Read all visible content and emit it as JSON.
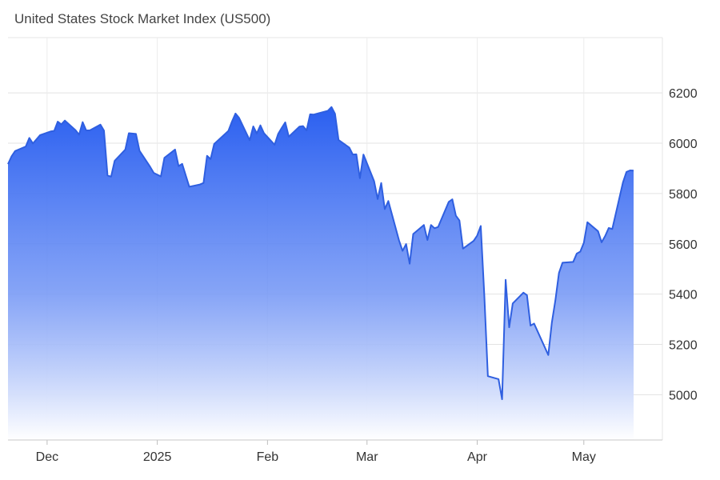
{
  "chart_data": {
    "type": "area",
    "title": "United States Stock Market Index (US500)",
    "xlabel": "",
    "ylabel": "",
    "ylim": [
      4820,
      6420
    ],
    "y_ticks": [
      5000,
      5200,
      5400,
      5600,
      5800,
      6000,
      6200
    ],
    "x_ticks": [
      {
        "label": "Dec",
        "date": "2024-12-01"
      },
      {
        "label": "2025",
        "date": "2025-01-01"
      },
      {
        "label": "Feb",
        "date": "2025-02-01"
      },
      {
        "label": "Mar",
        "date": "2025-03-01"
      },
      {
        "label": "Apr",
        "date": "2025-04-01"
      },
      {
        "label": "May",
        "date": "2025-05-01"
      }
    ],
    "grid": true,
    "colors": {
      "line": "#2f5fe0",
      "fill_top": "#2a5ff0",
      "fill_bottom": "#ffffff"
    },
    "series": [
      {
        "points": [
          [
            "2024-11-20",
            5917
          ],
          [
            "2024-11-21",
            5948
          ],
          [
            "2024-11-22",
            5969
          ],
          [
            "2024-11-25",
            5987
          ],
          [
            "2024-11-26",
            6021
          ],
          [
            "2024-11-27",
            5999
          ],
          [
            "2024-11-29",
            6032
          ],
          [
            "2024-12-02",
            6047
          ],
          [
            "2024-12-03",
            6049
          ],
          [
            "2024-12-04",
            6086
          ],
          [
            "2024-12-05",
            6075
          ],
          [
            "2024-12-06",
            6090
          ],
          [
            "2024-12-09",
            6052
          ],
          [
            "2024-12-10",
            6034
          ],
          [
            "2024-12-11",
            6084
          ],
          [
            "2024-12-12",
            6051
          ],
          [
            "2024-12-13",
            6051
          ],
          [
            "2024-12-16",
            6074
          ],
          [
            "2024-12-17",
            6050
          ],
          [
            "2024-12-18",
            5872
          ],
          [
            "2024-12-19",
            5867
          ],
          [
            "2024-12-20",
            5930
          ],
          [
            "2024-12-23",
            5975
          ],
          [
            "2024-12-24",
            6040
          ],
          [
            "2024-12-26",
            6037
          ],
          [
            "2024-12-27",
            5970
          ],
          [
            "2024-12-30",
            5906
          ],
          [
            "2024-12-31",
            5882
          ],
          [
            "2025-01-02",
            5868
          ],
          [
            "2025-01-03",
            5942
          ],
          [
            "2025-01-06",
            5975
          ],
          [
            "2025-01-07",
            5909
          ],
          [
            "2025-01-08",
            5918
          ],
          [
            "2025-01-10",
            5827
          ],
          [
            "2025-01-13",
            5836
          ],
          [
            "2025-01-14",
            5842
          ],
          [
            "2025-01-15",
            5950
          ],
          [
            "2025-01-16",
            5937
          ],
          [
            "2025-01-17",
            5997
          ],
          [
            "2025-01-21",
            6049
          ],
          [
            "2025-01-22",
            6086
          ],
          [
            "2025-01-23",
            6118
          ],
          [
            "2025-01-24",
            6101
          ],
          [
            "2025-01-27",
            6012
          ],
          [
            "2025-01-28",
            6067
          ],
          [
            "2025-01-29",
            6039
          ],
          [
            "2025-01-30",
            6071
          ],
          [
            "2025-01-31",
            6040
          ],
          [
            "2025-02-03",
            5994
          ],
          [
            "2025-02-04",
            6037
          ],
          [
            "2025-02-05",
            6061
          ],
          [
            "2025-02-06",
            6083
          ],
          [
            "2025-02-07",
            6026
          ],
          [
            "2025-02-10",
            6066
          ],
          [
            "2025-02-11",
            6068
          ],
          [
            "2025-02-12",
            6051
          ],
          [
            "2025-02-13",
            6115
          ],
          [
            "2025-02-14",
            6114
          ],
          [
            "2025-02-18",
            6129
          ],
          [
            "2025-02-19",
            6144
          ],
          [
            "2025-02-20",
            6117
          ],
          [
            "2025-02-21",
            6013
          ],
          [
            "2025-02-24",
            5983
          ],
          [
            "2025-02-25",
            5955
          ],
          [
            "2025-02-26",
            5956
          ],
          [
            "2025-02-27",
            5861
          ],
          [
            "2025-02-28",
            5955
          ],
          [
            "2025-03-03",
            5849
          ],
          [
            "2025-03-04",
            5778
          ],
          [
            "2025-03-05",
            5842
          ],
          [
            "2025-03-06",
            5738
          ],
          [
            "2025-03-07",
            5770
          ],
          [
            "2025-03-10",
            5614
          ],
          [
            "2025-03-11",
            5572
          ],
          [
            "2025-03-12",
            5599
          ],
          [
            "2025-03-13",
            5521
          ],
          [
            "2025-03-14",
            5639
          ],
          [
            "2025-03-17",
            5675
          ],
          [
            "2025-03-18",
            5615
          ],
          [
            "2025-03-19",
            5675
          ],
          [
            "2025-03-20",
            5662
          ],
          [
            "2025-03-21",
            5667
          ],
          [
            "2025-03-24",
            5767
          ],
          [
            "2025-03-25",
            5777
          ],
          [
            "2025-03-26",
            5712
          ],
          [
            "2025-03-27",
            5693
          ],
          [
            "2025-03-28",
            5581
          ],
          [
            "2025-03-31",
            5612
          ],
          [
            "2025-04-01",
            5633
          ],
          [
            "2025-04-02",
            5671
          ],
          [
            "2025-04-03",
            5396
          ],
          [
            "2025-04-04",
            5074
          ],
          [
            "2025-04-07",
            5062
          ],
          [
            "2025-04-08",
            4982
          ],
          [
            "2025-04-09",
            5457
          ],
          [
            "2025-04-10",
            5268
          ],
          [
            "2025-04-11",
            5363
          ],
          [
            "2025-04-14",
            5406
          ],
          [
            "2025-04-15",
            5396
          ],
          [
            "2025-04-16",
            5275
          ],
          [
            "2025-04-17",
            5283
          ],
          [
            "2025-04-21",
            5158
          ],
          [
            "2025-04-22",
            5287
          ],
          [
            "2025-04-23",
            5376
          ],
          [
            "2025-04-24",
            5484
          ],
          [
            "2025-04-25",
            5525
          ],
          [
            "2025-04-28",
            5528
          ],
          [
            "2025-04-29",
            5561
          ],
          [
            "2025-04-30",
            5569
          ],
          [
            "2025-05-01",
            5604
          ],
          [
            "2025-05-02",
            5686
          ],
          [
            "2025-05-05",
            5650
          ],
          [
            "2025-05-06",
            5606
          ],
          [
            "2025-05-07",
            5631
          ],
          [
            "2025-05-08",
            5663
          ],
          [
            "2025-05-09",
            5659
          ],
          [
            "2025-05-12",
            5844
          ],
          [
            "2025-05-13",
            5886
          ],
          [
            "2025-05-14",
            5892
          ],
          [
            "2025-05-15",
            5891
          ]
        ]
      }
    ]
  }
}
